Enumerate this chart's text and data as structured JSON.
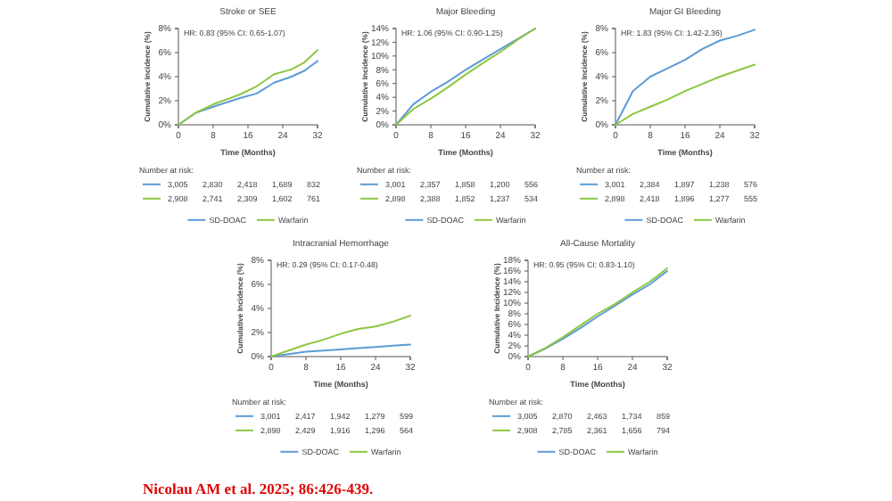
{
  "chart_data": [
    {
      "type": "line",
      "title": "Stroke or SEE",
      "xlabel": "Time (Months)",
      "ylabel": "Cumulative Incidence (%)",
      "x": [
        0,
        4,
        8,
        14,
        18,
        22,
        26,
        29,
        32
      ],
      "xlim": [
        0,
        32
      ],
      "xticks": [
        0,
        8,
        16,
        24,
        32
      ],
      "ylim": [
        0,
        8
      ],
      "yticks": [
        {
          "value": 0,
          "label": "0%"
        },
        {
          "value": 2,
          "label": "2%"
        },
        {
          "value": 4,
          "label": "4%"
        },
        {
          "value": 6,
          "label": "6%"
        },
        {
          "value": 8,
          "label": "8%"
        }
      ],
      "legend": "bottom",
      "marker": "none",
      "series": [
        {
          "name": "SD-DOAC",
          "color": "#5b9bd5",
          "values": [
            0,
            1,
            1.5,
            2.2,
            2.6,
            3.5,
            4,
            4.5,
            5.3
          ]
        },
        {
          "name": "Warfarin",
          "color": "#8dc641",
          "values": [
            0,
            1,
            1.7,
            2.5,
            3.2,
            4.2,
            4.6,
            5.2,
            6.2
          ]
        }
      ],
      "annotations": [
        "HR: 0.83 (95% CI: 0.65-1.07)",
        "Number at risk:",
        "3,005 2,830 2,418 1,689 832",
        "2,908 2,741 2,309 1,602 761"
      ]
    },
    {
      "type": "line",
      "title": "Major Bleeding",
      "xlabel": "Time (Months)",
      "ylabel": "Cumulative Incidence (%)",
      "x": [
        0,
        4,
        8,
        12,
        16,
        20,
        24,
        28,
        32
      ],
      "xlim": [
        0,
        32
      ],
      "xticks": [
        0,
        8,
        16,
        24,
        32
      ],
      "ylim": [
        0,
        14
      ],
      "yticks": [
        {
          "value": 0,
          "label": "0%"
        },
        {
          "value": 2,
          "label": "2%"
        },
        {
          "value": 4,
          "label": "4%"
        },
        {
          "value": 6,
          "label": "6%"
        },
        {
          "value": 8,
          "label": "8%"
        },
        {
          "value": 10,
          "label": "10%"
        },
        {
          "value": 12,
          "label": "12%"
        },
        {
          "value": 14,
          "label": "14%"
        }
      ],
      "legend": "bottom",
      "marker": "none",
      "series": [
        {
          "name": "SD-DOAC",
          "color": "#5b9bd5",
          "values": [
            0,
            3,
            4.8,
            6.3,
            8,
            9.5,
            11,
            12.5,
            14
          ]
        },
        {
          "name": "Warfarin",
          "color": "#8dc641",
          "values": [
            0,
            2.3,
            3.8,
            5.5,
            7.3,
            9,
            10.6,
            12.4,
            14
          ]
        }
      ],
      "annotations": [
        "HR: 1.06 (95% CI: 0.90-1.25)",
        "Number at risk:",
        "3,001 2,357 1,858 1,200 556",
        "2,898 2,388 1,852 1,237 534"
      ]
    },
    {
      "type": "line",
      "title": "Major GI Bleeding",
      "xlabel": "Time (Months)",
      "ylabel": "Cumulative Incidence (%)",
      "x": [
        0,
        4,
        8,
        12,
        16,
        20,
        24,
        28,
        32
      ],
      "xlim": [
        0,
        32
      ],
      "xticks": [
        0,
        8,
        16,
        24,
        32
      ],
      "ylim": [
        0,
        8
      ],
      "yticks": [
        {
          "value": 0,
          "label": "0%"
        },
        {
          "value": 2,
          "label": "2%"
        },
        {
          "value": 4,
          "label": "4%"
        },
        {
          "value": 6,
          "label": "6%"
        },
        {
          "value": 8,
          "label": "8%"
        }
      ],
      "legend": "bottom",
      "marker": "none",
      "series": [
        {
          "name": "SD-DOAC",
          "color": "#5b9bd5",
          "values": [
            0,
            2.8,
            4,
            4.7,
            5.4,
            6.3,
            7,
            7.4,
            7.9
          ]
        },
        {
          "name": "Warfarin",
          "color": "#8dc641",
          "values": [
            0,
            0.9,
            1.5,
            2.1,
            2.8,
            3.4,
            4,
            4.5,
            5
          ]
        }
      ],
      "annotations": [
        "HR: 1.83 (95% CI: 1.42-2.36)",
        "Number at risk:",
        "3,001 2,384 1,897 1,238 576",
        "2,898 2,418 1,896 1,277 555"
      ]
    },
    {
      "type": "line",
      "title": "Intracranial Hemorrhage",
      "xlabel": "Time (Months)",
      "ylabel": "Cumulative Incidence (%)",
      "x": [
        0,
        4,
        8,
        12,
        16,
        20,
        24,
        28,
        32
      ],
      "xlim": [
        0,
        32
      ],
      "xticks": [
        0,
        8,
        16,
        24,
        32
      ],
      "ylim": [
        0,
        8
      ],
      "yticks": [
        {
          "value": 0,
          "label": "0%"
        },
        {
          "value": 2,
          "label": "2%"
        },
        {
          "value": 4,
          "label": "4%"
        },
        {
          "value": 6,
          "label": "6%"
        },
        {
          "value": 8,
          "label": "8%"
        }
      ],
      "legend": "bottom",
      "marker": "none",
      "series": [
        {
          "name": "SD-DOAC",
          "color": "#5b9bd5",
          "values": [
            0,
            0.2,
            0.4,
            0.5,
            0.6,
            0.7,
            0.8,
            0.9,
            1
          ]
        },
        {
          "name": "Warfarin",
          "color": "#8dc641",
          "values": [
            0,
            0.5,
            1,
            1.4,
            1.9,
            2.3,
            2.5,
            2.9,
            3.4
          ]
        }
      ],
      "annotations": [
        "HR: 0.29 (95% CI: 0.17-0.48)",
        "Number at risk:",
        "3,001 2,417 1,942 1,279 599",
        "2,898 2,429 1,916 1,296 564"
      ]
    },
    {
      "type": "line",
      "title": "All-Cause Mortality",
      "xlabel": "Time (Months)",
      "ylabel": "Cumulative Incidence (%)",
      "x": [
        0,
        4,
        8,
        12,
        16,
        20,
        24,
        28,
        32
      ],
      "xlim": [
        0,
        32
      ],
      "xticks": [
        0,
        8,
        16,
        24,
        32
      ],
      "ylim": [
        0,
        18
      ],
      "yticks": [
        {
          "value": 0,
          "label": "0%"
        },
        {
          "value": 2,
          "label": "2%"
        },
        {
          "value": 4,
          "label": "4%"
        },
        {
          "value": 6,
          "label": "6%"
        },
        {
          "value": 8,
          "label": "8%"
        },
        {
          "value": 10,
          "label": "10%"
        },
        {
          "value": 12,
          "label": "12%"
        },
        {
          "value": 14,
          "label": "14%"
        },
        {
          "value": 16,
          "label": "16%"
        },
        {
          "value": 18,
          "label": "18%"
        }
      ],
      "legend": "bottom",
      "marker": "none",
      "series": [
        {
          "name": "SD-DOAC",
          "color": "#5b9bd5",
          "values": [
            0,
            1.5,
            3.3,
            5.3,
            7.5,
            9.5,
            11.6,
            13.5,
            16
          ]
        },
        {
          "name": "Warfarin",
          "color": "#8dc641",
          "values": [
            0,
            1.6,
            3.6,
            5.8,
            8,
            9.8,
            12,
            14,
            16.5
          ]
        }
      ],
      "annotations": [
        "HR: 0.95 (95% CI: 0.83-1.10)",
        "Number at risk:",
        "3,005 2,870 2,463 1,734 859",
        "2,908 2,785 2,361 1,656 794",
        "Nicolau AM et al. 2025; 86:426-439."
      ]
    }
  ]
}
